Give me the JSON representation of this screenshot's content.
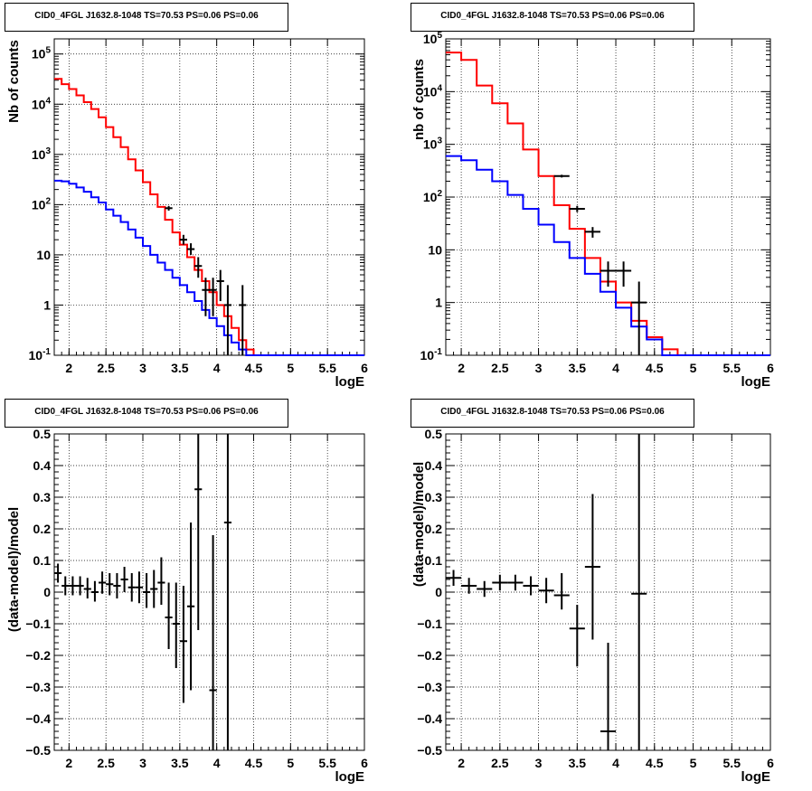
{
  "chart_data": [
    {
      "type": "line",
      "title": "CID0_4FGL J1632.8-1048 TS=70.53 PS=0.06 PS=0.06",
      "xlabel": "logE",
      "ylabel": "Nb of counts",
      "xlim": [
        1.8,
        6.0
      ],
      "ylim": [
        0.1,
        200000
      ],
      "yscale": "log",
      "grid": true,
      "x_ticks": [
        "2",
        "2.5",
        "3",
        "3.5",
        "4",
        "4.5",
        "5",
        "5.5",
        "6"
      ],
      "y_ticks": [
        "10^-1",
        "1",
        "10",
        "10^2",
        "10^3",
        "10^4",
        "10^5"
      ],
      "bin_edges": [
        1.8,
        1.9,
        2.0,
        2.1,
        2.2,
        2.3,
        2.4,
        2.5,
        2.6,
        2.7,
        2.8,
        2.9,
        3.0,
        3.1,
        3.2,
        3.3,
        3.4,
        3.5,
        3.6,
        3.7,
        3.8,
        3.9,
        4.0,
        4.1,
        4.2,
        4.3,
        4.4,
        4.5,
        4.6,
        4.7,
        4.8,
        4.9,
        5.0,
        5.1,
        5.2,
        5.3,
        5.4,
        5.5,
        5.6,
        5.7,
        5.8,
        5.9,
        6.0
      ],
      "series": [
        {
          "color": "#ff0000",
          "values": [
            32000,
            25000,
            20000,
            15000,
            11000,
            8000,
            5500,
            3500,
            2200,
            1400,
            800,
            480,
            280,
            160,
            90,
            50,
            28,
            16,
            9,
            5,
            3,
            1.8,
            1.0,
            0.6,
            0.35,
            0.2,
            0.13,
            0.1,
            0.1,
            0.1,
            0.1,
            0.1,
            0.1,
            0.1,
            0.1,
            0.1,
            0.1,
            0.1,
            0.1,
            0.1,
            0.1,
            0.1
          ]
        },
        {
          "color": "#0000ff",
          "values": [
            300,
            290,
            260,
            220,
            180,
            140,
            110,
            80,
            60,
            45,
            32,
            22,
            15,
            10,
            7,
            5,
            3.5,
            2.5,
            1.8,
            1.2,
            0.8,
            0.55,
            0.38,
            0.25,
            0.18,
            0.13,
            0.1,
            0.1,
            0.1,
            0.1,
            0.1,
            0.1,
            0.1,
            0.1,
            0.1,
            0.1,
            0.1,
            0.1,
            0.1,
            0.1,
            0.1,
            0.1
          ]
        }
      ],
      "data_points": [
        {
          "x": 3.35,
          "y": 85,
          "ylo": 76,
          "yhi": 94,
          "xerr": 0.05
        },
        {
          "x": 3.55,
          "y": 20,
          "ylo": 16,
          "yhi": 25,
          "xerr": 0.05
        },
        {
          "x": 3.65,
          "y": 13,
          "ylo": 10,
          "yhi": 17,
          "xerr": 0.05
        },
        {
          "x": 3.75,
          "y": 6,
          "ylo": 3.5,
          "yhi": 9,
          "xerr": 0.05
        },
        {
          "x": 3.85,
          "y": 2,
          "ylo": 0.6,
          "yhi": 3.5,
          "xerr": 0.05
        },
        {
          "x": 3.95,
          "y": 2,
          "ylo": 0.6,
          "yhi": 3.5,
          "xerr": 0.05
        },
        {
          "x": 4.05,
          "y": 3,
          "ylo": 1.2,
          "yhi": 5,
          "xerr": 0.05
        },
        {
          "x": 4.15,
          "y": 1,
          "ylo": 0.1,
          "yhi": 2.5,
          "xerr": 0.05
        },
        {
          "x": 4.35,
          "y": 1,
          "ylo": 0.1,
          "yhi": 2.5,
          "xerr": 0.05
        }
      ]
    },
    {
      "type": "line",
      "title": "CID0_4FGL J1632.8-1048 TS=70.53 PS=0.06 PS=0.06",
      "xlabel": "logE",
      "ylabel": "nb of counts",
      "xlim": [
        1.8,
        6.0
      ],
      "ylim": [
        0.1,
        100000
      ],
      "yscale": "log",
      "grid": true,
      "x_ticks": [
        "2",
        "2.5",
        "3",
        "3.5",
        "4",
        "4.5",
        "5",
        "5.5",
        "6"
      ],
      "y_ticks": [
        "10^-1",
        "1",
        "10",
        "10^2",
        "10^3",
        "10^4",
        "10^5"
      ],
      "bin_edges": [
        1.8,
        2.0,
        2.2,
        2.4,
        2.6,
        2.8,
        3.0,
        3.2,
        3.4,
        3.6,
        3.8,
        4.0,
        4.2,
        4.4,
        4.6,
        4.8,
        5.0,
        5.2,
        5.4,
        5.6,
        5.8,
        6.0
      ],
      "series": [
        {
          "color": "#ff0000",
          "values": [
            55000,
            40000,
            13000,
            6000,
            2500,
            800,
            250,
            70,
            25,
            7,
            2.5,
            1.0,
            0.45,
            0.22,
            0.13,
            0.1,
            0.1,
            0.1,
            0.1,
            0.1,
            0.1
          ]
        },
        {
          "color": "#0000ff",
          "values": [
            600,
            500,
            330,
            200,
            110,
            60,
            30,
            14,
            7,
            3.5,
            1.6,
            0.8,
            0.35,
            0.2,
            0.1,
            0.1,
            0.1,
            0.1,
            0.1,
            0.1,
            0.1
          ]
        }
      ],
      "data_points": [
        {
          "x": 3.3,
          "y": 250,
          "ylo": 235,
          "yhi": 265,
          "xerr": 0.1
        },
        {
          "x": 3.5,
          "y": 60,
          "ylo": 52,
          "yhi": 68,
          "xerr": 0.1
        },
        {
          "x": 3.7,
          "y": 22,
          "ylo": 17,
          "yhi": 27,
          "xerr": 0.1
        },
        {
          "x": 3.9,
          "y": 4,
          "ylo": 2,
          "yhi": 6,
          "xerr": 0.1
        },
        {
          "x": 4.1,
          "y": 4,
          "ylo": 2,
          "yhi": 6,
          "xerr": 0.1
        },
        {
          "x": 4.3,
          "y": 1,
          "ylo": 0.1,
          "yhi": 2.5,
          "xerr": 0.1
        }
      ]
    },
    {
      "type": "scatter",
      "title": "CID0_4FGL J1632.8-1048 TS=70.53 PS=0.06 PS=0.06",
      "xlabel": "logE",
      "ylabel": "(data-model)/model",
      "xlim": [
        1.8,
        6.0
      ],
      "ylim": [
        -0.5,
        0.5
      ],
      "grid": true,
      "x_ticks": [
        "2",
        "2.5",
        "3",
        "3.5",
        "4",
        "4.5",
        "5",
        "5.5",
        "6"
      ],
      "y_ticks": [
        "-0.5",
        "-0.4",
        "-0.3",
        "-0.2",
        "-0.1",
        "0",
        "0.1",
        "0.2",
        "0.3",
        "0.4",
        "0.5"
      ],
      "points": [
        {
          "x": 1.85,
          "y": 0.06,
          "ylo": 0.03,
          "yhi": 0.09,
          "xerr": 0.05
        },
        {
          "x": 1.95,
          "y": 0.02,
          "ylo": -0.01,
          "yhi": 0.05,
          "xerr": 0.05
        },
        {
          "x": 2.05,
          "y": 0.02,
          "ylo": -0.01,
          "yhi": 0.05,
          "xerr": 0.05
        },
        {
          "x": 2.15,
          "y": 0.02,
          "ylo": -0.01,
          "yhi": 0.05,
          "xerr": 0.05
        },
        {
          "x": 2.25,
          "y": 0.01,
          "ylo": -0.02,
          "yhi": 0.045,
          "xerr": 0.05
        },
        {
          "x": 2.35,
          "y": 0.0,
          "ylo": -0.03,
          "yhi": 0.035,
          "xerr": 0.05
        },
        {
          "x": 2.45,
          "y": 0.03,
          "ylo": -0.005,
          "yhi": 0.065,
          "xerr": 0.05
        },
        {
          "x": 2.55,
          "y": 0.025,
          "ylo": -0.01,
          "yhi": 0.06,
          "xerr": 0.05
        },
        {
          "x": 2.65,
          "y": 0.02,
          "ylo": -0.02,
          "yhi": 0.06,
          "xerr": 0.05
        },
        {
          "x": 2.75,
          "y": 0.04,
          "ylo": 0.0,
          "yhi": 0.08,
          "xerr": 0.05
        },
        {
          "x": 2.85,
          "y": 0.015,
          "ylo": -0.03,
          "yhi": 0.06,
          "xerr": 0.05
        },
        {
          "x": 2.95,
          "y": 0.015,
          "ylo": -0.035,
          "yhi": 0.065,
          "xerr": 0.05
        },
        {
          "x": 3.05,
          "y": 0.0,
          "ylo": -0.05,
          "yhi": 0.06,
          "xerr": 0.05
        },
        {
          "x": 3.15,
          "y": 0.01,
          "ylo": -0.05,
          "yhi": 0.07,
          "xerr": 0.05
        },
        {
          "x": 3.25,
          "y": 0.03,
          "ylo": -0.04,
          "yhi": 0.11,
          "xerr": 0.05
        },
        {
          "x": 3.35,
          "y": -0.08,
          "ylo": -0.18,
          "yhi": 0.03,
          "xerr": 0.05
        },
        {
          "x": 3.45,
          "y": -0.1,
          "ylo": -0.24,
          "yhi": 0.03,
          "xerr": 0.05
        },
        {
          "x": 3.55,
          "y": -0.155,
          "ylo": -0.35,
          "yhi": 0.02,
          "xerr": 0.05
        },
        {
          "x": 3.65,
          "y": -0.045,
          "ylo": -0.31,
          "yhi": 0.22,
          "xerr": 0.05
        },
        {
          "x": 3.75,
          "y": 0.325,
          "ylo": -0.12,
          "yhi": 0.5,
          "xerr": 0.05
        },
        {
          "x": 3.95,
          "y": -0.31,
          "ylo": -0.5,
          "yhi": 0.18,
          "xerr": 0.05
        },
        {
          "x": 4.15,
          "y": 0.22,
          "ylo": -0.5,
          "yhi": 0.5,
          "xerr": 0.05
        }
      ]
    },
    {
      "type": "scatter",
      "title": "CID0_4FGL J1632.8-1048 TS=70.53 PS=0.06 PS=0.06",
      "xlabel": "logE",
      "ylabel": "(data-model)/model",
      "xlim": [
        1.8,
        6.0
      ],
      "ylim": [
        -0.5,
        0.5
      ],
      "grid": true,
      "x_ticks": [
        "2",
        "2.5",
        "3",
        "3.5",
        "4",
        "4.5",
        "5",
        "5.5",
        "6"
      ],
      "y_ticks": [
        "-0.5",
        "-0.4",
        "-0.3",
        "-0.2",
        "-0.1",
        "0",
        "0.1",
        "0.2",
        "0.3",
        "0.4",
        "0.5"
      ],
      "points": [
        {
          "x": 1.9,
          "y": 0.045,
          "ylo": 0.02,
          "yhi": 0.07,
          "xerr": 0.1
        },
        {
          "x": 2.1,
          "y": 0.02,
          "ylo": -0.005,
          "yhi": 0.045,
          "xerr": 0.1
        },
        {
          "x": 2.3,
          "y": 0.01,
          "ylo": -0.015,
          "yhi": 0.035,
          "xerr": 0.1
        },
        {
          "x": 2.5,
          "y": 0.03,
          "ylo": 0.005,
          "yhi": 0.055,
          "xerr": 0.1
        },
        {
          "x": 2.7,
          "y": 0.03,
          "ylo": 0.005,
          "yhi": 0.055,
          "xerr": 0.1
        },
        {
          "x": 2.9,
          "y": 0.02,
          "ylo": -0.01,
          "yhi": 0.05,
          "xerr": 0.1
        },
        {
          "x": 3.1,
          "y": 0.005,
          "ylo": -0.035,
          "yhi": 0.045,
          "xerr": 0.1
        },
        {
          "x": 3.3,
          "y": -0.01,
          "ylo": -0.055,
          "yhi": 0.06,
          "xerr": 0.1
        },
        {
          "x": 3.5,
          "y": -0.115,
          "ylo": -0.235,
          "yhi": -0.04,
          "xerr": 0.1
        },
        {
          "x": 3.7,
          "y": 0.08,
          "ylo": -0.15,
          "yhi": 0.31,
          "xerr": 0.1
        },
        {
          "x": 3.9,
          "y": -0.44,
          "ylo": -0.5,
          "yhi": -0.16,
          "xerr": 0.1
        },
        {
          "x": 4.3,
          "y": -0.005,
          "ylo": -0.5,
          "yhi": 0.5,
          "xerr": 0.1
        }
      ]
    }
  ]
}
